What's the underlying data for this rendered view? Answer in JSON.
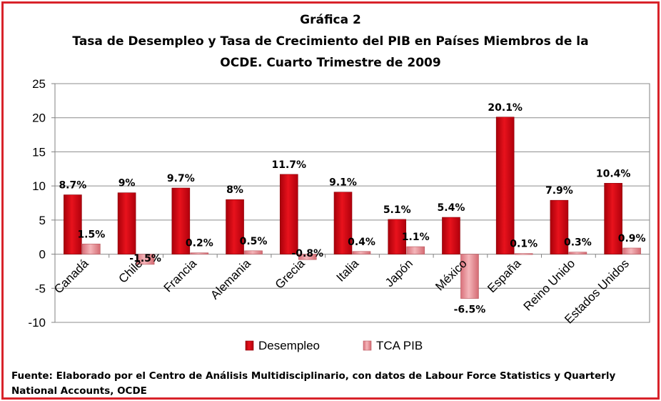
{
  "chart_data": {
    "type": "bar",
    "title_lines": [
      "Gráfica 2",
      "Tasa de Desempleo y Tasa de Crecimiento del PIB en Países Miembros de la",
      "OCDE.  Cuarto Trimestre de 2009"
    ],
    "categories": [
      "Canadá",
      "Chile",
      "Francia",
      "Alemania",
      "Grecia",
      "Italia",
      "Japón",
      "México",
      "España",
      "Reino Unido",
      "Estados Unidos"
    ],
    "series": [
      {
        "name": "Desempleo",
        "values": [
          8.7,
          9,
          9.7,
          8,
          11.7,
          9.1,
          5.1,
          5.4,
          20.1,
          7.9,
          10.4
        ],
        "labels": [
          "8.7%",
          "9%",
          "9.7%",
          "8%",
          "11.7%",
          "9.1%",
          "5.1%",
          "5.4%",
          "20.1%",
          "7.9%",
          "10.4%"
        ],
        "color": "#d8101a"
      },
      {
        "name": "TCA PIB",
        "values": [
          1.5,
          -1.5,
          0.2,
          0.5,
          -0.8,
          0.4,
          1.1,
          -6.5,
          0.1,
          0.3,
          0.9
        ],
        "labels": [
          "1.5%",
          "-1.5%",
          "0.2%",
          "0.5%",
          "-0.8%",
          "0.4%",
          "1.1%",
          "-6.5%",
          "0.1%",
          "0.3%",
          "0.9%"
        ],
        "color": "#e8868c"
      }
    ],
    "yticks": [
      "25",
      "20",
      "15",
      "10",
      "5",
      "0",
      "-5",
      "-10"
    ],
    "ylim": [
      -10,
      25
    ],
    "grid": true,
    "legend_position": "bottom"
  },
  "source_note": "Fuente: Elaborado por el Centro de Análisis Multidisciplinario, con datos de Labour Force Statistics y Quarterly National Accounts, OCDE"
}
